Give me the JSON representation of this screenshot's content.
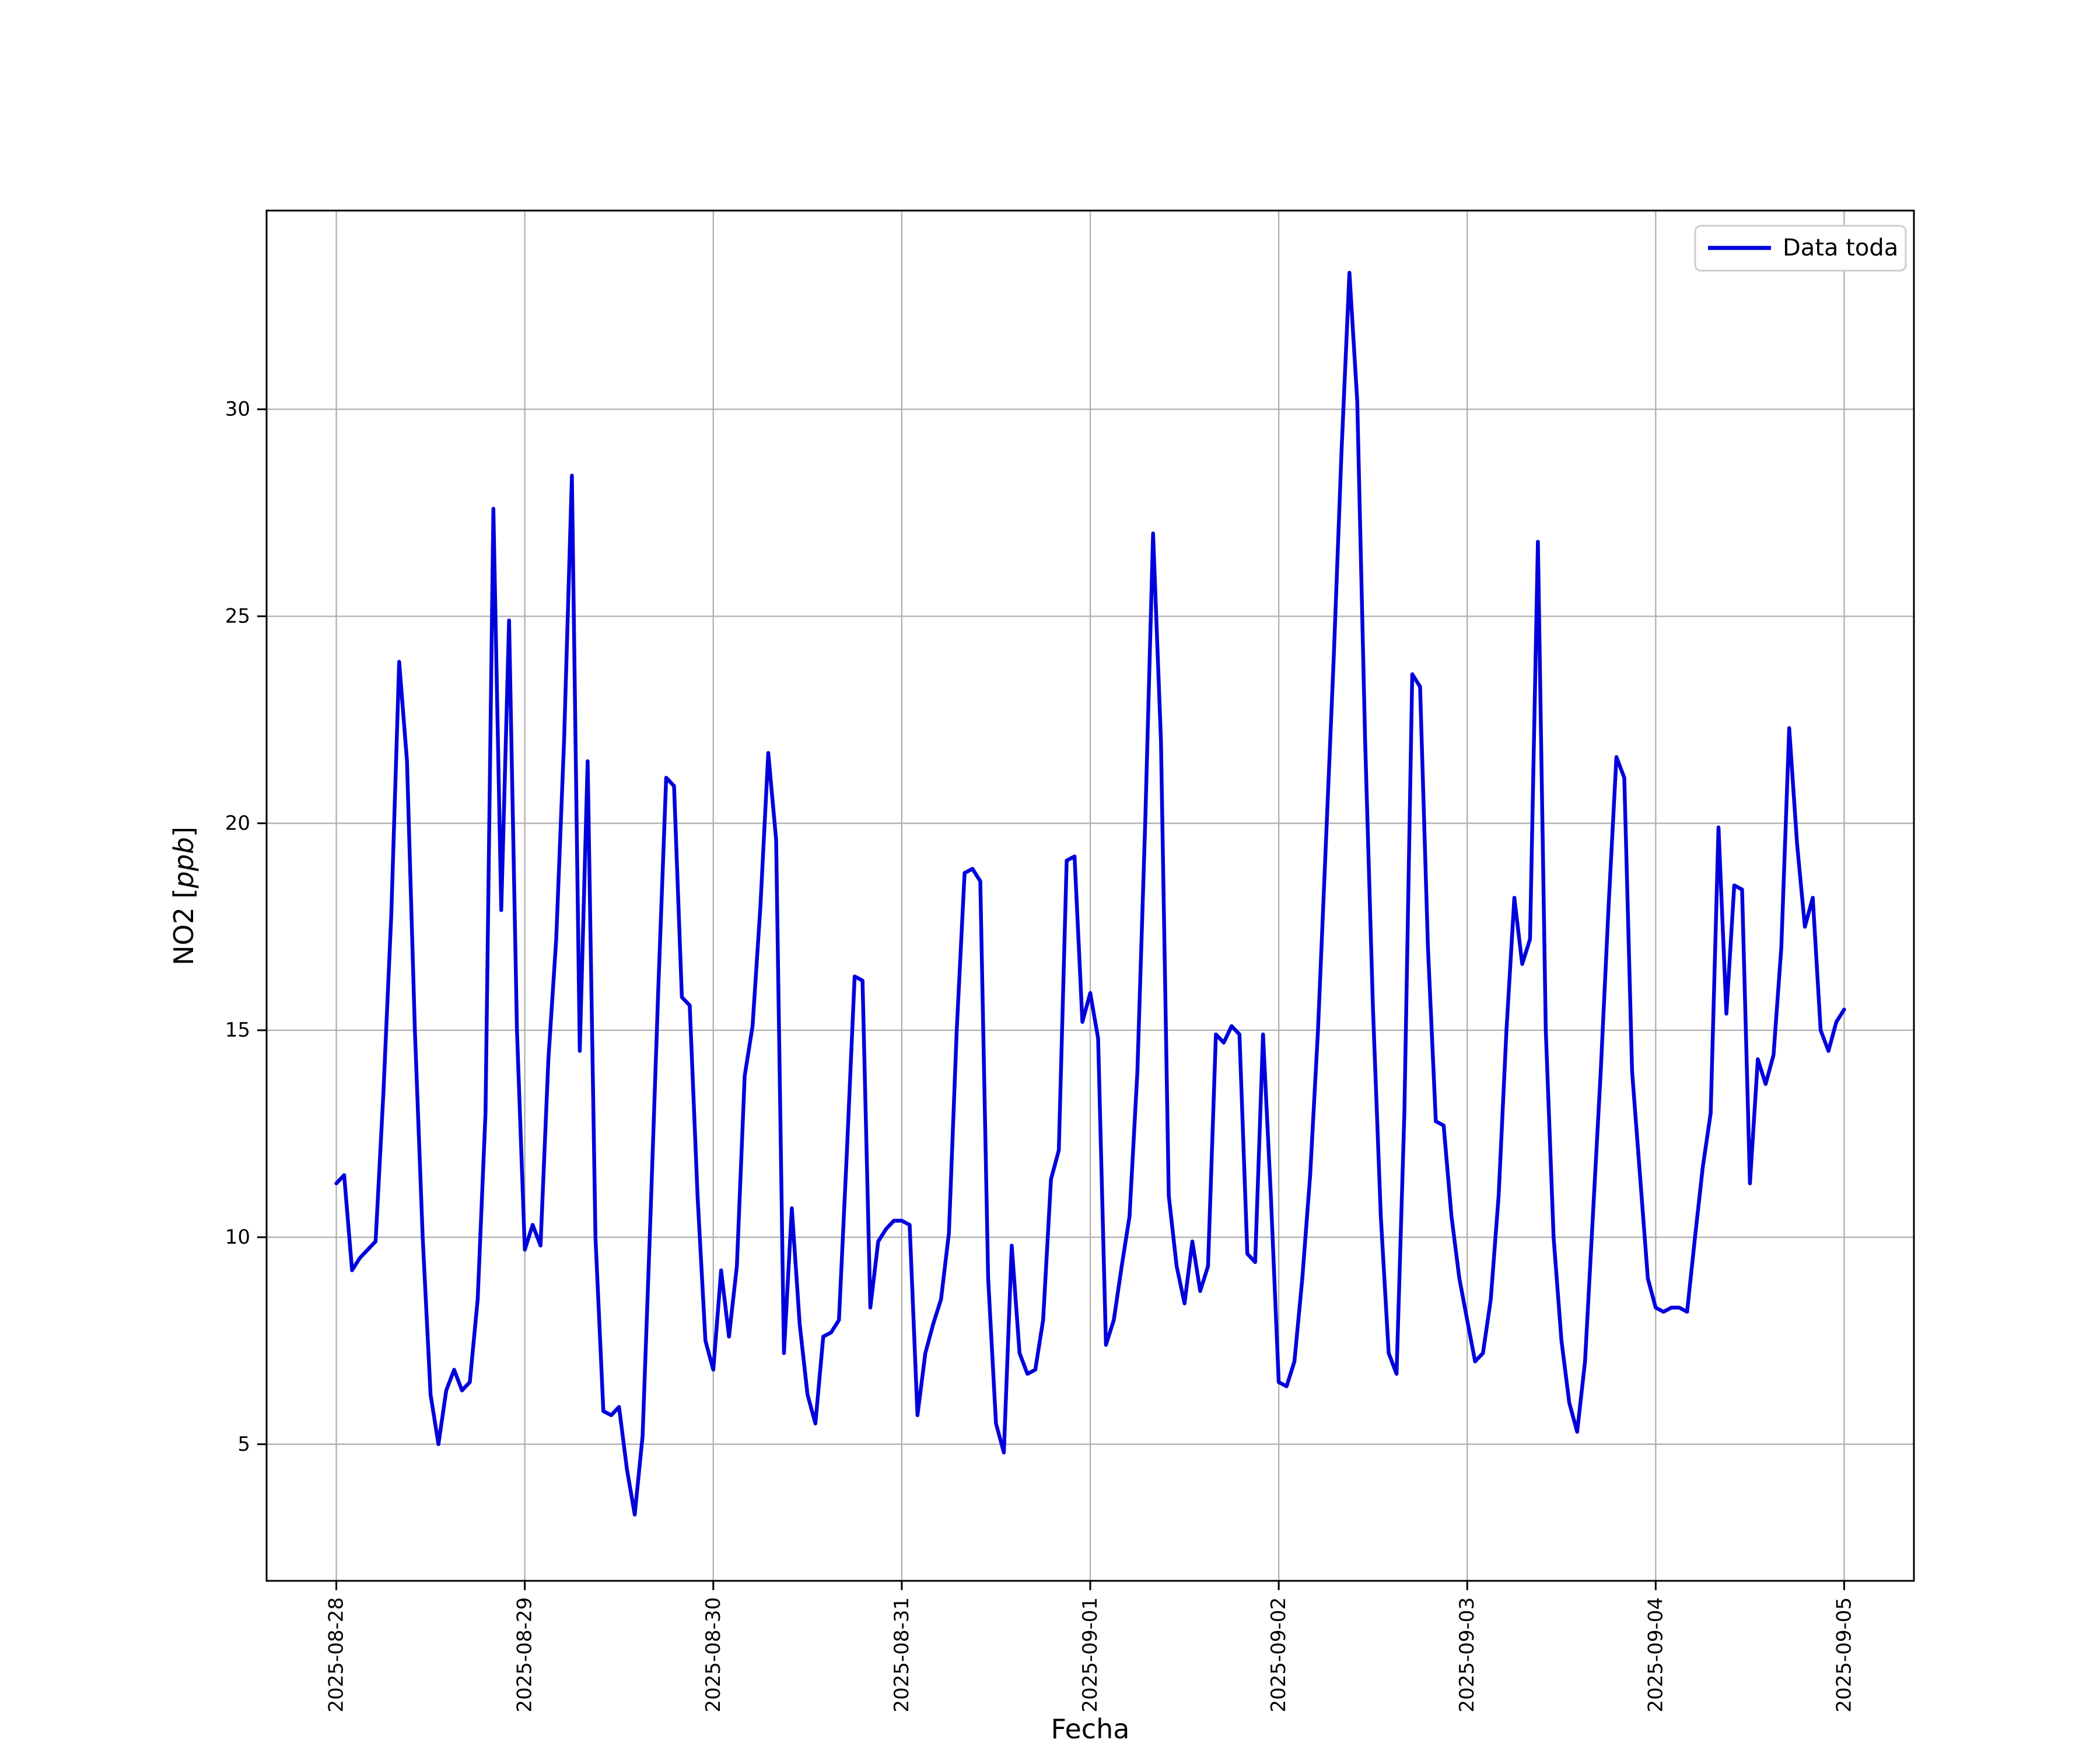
{
  "figure": {
    "background": "#ffffff"
  },
  "chart_data": {
    "type": "line",
    "title": "",
    "xlabel": "Fecha",
    "ylabel": "NO2 [ppb]",
    "ylabel_parts": {
      "prefix": "NO2 [",
      "italic": "ppb",
      "suffix": "]"
    },
    "grid": true,
    "legend": {
      "position": "upper right",
      "entries": [
        {
          "label": "Data toda",
          "color": "#0000dd"
        }
      ]
    },
    "x_tick_labels": [
      "2025-08-28",
      "2025-08-29",
      "2025-08-30",
      "2025-08-31",
      "2025-09-01",
      "2025-09-02",
      "2025-09-03",
      "2025-09-04",
      "2025-09-05"
    ],
    "y_ticks": [
      5,
      10,
      15,
      20,
      25,
      30
    ],
    "y_tick_labels": [
      "5",
      "10",
      "15",
      "20",
      "25",
      "30"
    ],
    "xlim_days": [
      -0.37,
      8.37
    ],
    "ylim": [
      1.7,
      34.8
    ],
    "x_unit": "hours since 2025-08-28 00:00",
    "series": [
      {
        "name": "Data toda",
        "color": "#0000dd",
        "x_start_hour": 0,
        "x_step_hours": 1,
        "values": [
          11.3,
          11.5,
          9.2,
          9.5,
          9.7,
          9.9,
          13.5,
          17.8,
          23.9,
          21.5,
          15.0,
          10.0,
          6.2,
          5.0,
          6.3,
          6.8,
          6.3,
          6.5,
          8.5,
          13.0,
          27.6,
          17.9,
          24.9,
          15.0,
          9.7,
          10.3,
          9.8,
          14.3,
          17.2,
          22.0,
          28.4,
          14.5,
          21.5,
          10.0,
          5.8,
          5.7,
          5.9,
          4.4,
          3.3,
          5.2,
          10.5,
          16.0,
          21.1,
          20.9,
          15.8,
          15.6,
          11.0,
          7.5,
          6.8,
          9.2,
          7.6,
          9.3,
          13.9,
          15.1,
          18.0,
          21.7,
          19.6,
          7.2,
          10.7,
          7.9,
          6.2,
          5.5,
          7.6,
          7.7,
          8.0,
          12.0,
          16.3,
          16.2,
          8.3,
          9.9,
          10.2,
          10.4,
          10.4,
          10.3,
          5.7,
          7.2,
          7.9,
          8.5,
          10.1,
          15.0,
          18.8,
          18.9,
          18.6,
          9.0,
          5.5,
          4.8,
          9.8,
          7.2,
          6.7,
          6.8,
          8.0,
          11.4,
          12.1,
          19.1,
          19.2,
          15.2,
          15.9,
          14.8,
          7.4,
          8.0,
          9.3,
          10.5,
          14.0,
          20.0,
          27.0,
          22.0,
          11.0,
          9.3,
          8.4,
          9.9,
          8.7,
          9.3,
          14.9,
          14.7,
          15.1,
          14.9,
          9.6,
          9.4,
          14.9,
          11.0,
          6.5,
          6.4,
          7.0,
          9.0,
          11.5,
          15.0,
          19.5,
          24.0,
          29.0,
          33.3,
          30.2,
          22.0,
          15.5,
          10.5,
          7.2,
          6.7,
          13.0,
          23.6,
          23.3,
          17.0,
          12.8,
          12.7,
          10.5,
          9.0,
          8.0,
          7.0,
          7.2,
          8.5,
          11.0,
          15.0,
          18.2,
          16.6,
          17.2,
          26.8,
          15.0,
          10.0,
          7.5,
          6.0,
          5.3,
          7.0,
          10.5,
          14.0,
          18.0,
          21.6,
          21.1,
          14.0,
          11.5,
          9.0,
          8.3,
          8.2,
          8.3,
          8.3,
          8.2,
          10.0,
          11.7,
          13.0,
          19.9,
          15.4,
          18.5,
          18.4,
          11.3,
          14.3,
          13.7,
          14.4,
          17.0,
          22.3,
          19.5,
          17.5,
          18.2,
          15.0,
          14.5,
          15.2,
          15.5
        ]
      }
    ]
  }
}
